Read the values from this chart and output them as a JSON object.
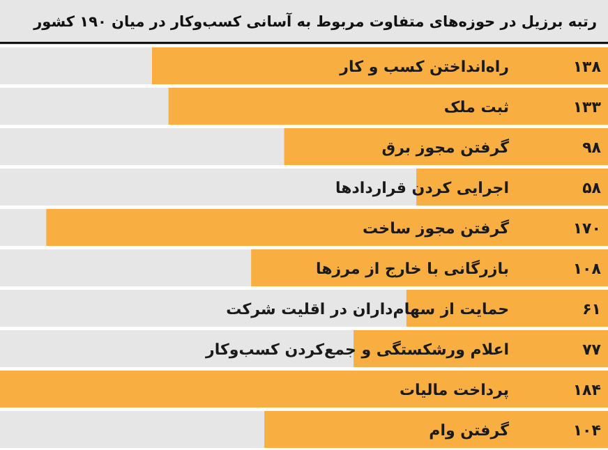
{
  "chart_data": {
    "type": "bar",
    "orientation": "horizontal",
    "title": "رتبه برزیل در حوزه‌های متفاوت مربوط به آسانی کسب‌وکار در میان ۱۹۰ کشور",
    "categories": [
      "راه‌انداختن کسب و کار",
      "ثبت ملک",
      "گرفتن مجوز برق",
      "اجرایی کردن قراردادها",
      "گرفتن مجوز ساخت",
      "بازرگانی با خارج از مرزها",
      "حمایت از سهام‌داران در اقلیت شرکت",
      "اعلام ورشکستگی و جمع‌کردن کسب‌وکار",
      "پرداخت مالیات",
      "گرفتن وام"
    ],
    "values": [
      138,
      133,
      98,
      58,
      170,
      108,
      61,
      77,
      184,
      104
    ],
    "value_labels": [
      "۱۳۸",
      "۱۳۳",
      "۹۸",
      "۵۸",
      "۱۷۰",
      "۱۰۸",
      "۶۱",
      "۷۷",
      "۱۸۴",
      "۱۰۴"
    ],
    "color": "#f9ae42"
  }
}
